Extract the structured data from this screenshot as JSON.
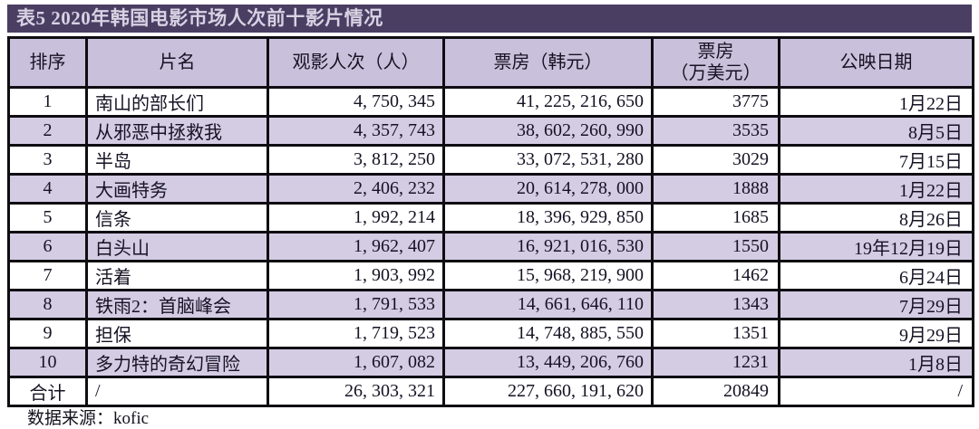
{
  "title": "表5 2020年韩国电影市场人次前十影片情况",
  "table": {
    "columns": [
      {
        "label": "排序"
      },
      {
        "label": "片名"
      },
      {
        "label": "观影人次（人）"
      },
      {
        "label": "票房（韩元）"
      },
      {
        "label": "票房",
        "label2": "（万美元）"
      },
      {
        "label": "公映日期"
      }
    ],
    "rows": [
      [
        "1",
        "南山的部长们",
        "4, 750, 345",
        "41, 225, 216, 650",
        "3775",
        "1月22日"
      ],
      [
        "2",
        "从邪恶中拯救我",
        "4, 357, 743",
        "38, 602, 260, 990",
        "3535",
        "8月5日"
      ],
      [
        "3",
        "半岛",
        "3, 812, 250",
        "33, 072, 531, 280",
        "3029",
        "7月15日"
      ],
      [
        "4",
        "大画特务",
        "2, 406, 232",
        "20, 614, 278, 000",
        "1888",
        "1月22日"
      ],
      [
        "5",
        "信条",
        "1, 992, 214",
        "18, 396, 929, 850",
        "1685",
        "8月26日"
      ],
      [
        "6",
        "白头山",
        "1, 962, 407",
        "16, 921, 016, 530",
        "1550",
        "19年12月19日"
      ],
      [
        "7",
        "活着",
        "1, 903, 992",
        "15, 968, 219, 900",
        "1462",
        "6月24日"
      ],
      [
        "8",
        "铁雨2：首脑峰会",
        "1, 791, 533",
        "14, 661, 646, 110",
        "1343",
        "7月29日"
      ],
      [
        "9",
        "担保",
        "1, 719, 523",
        "14, 748, 885, 550",
        "1351",
        "9月29日"
      ],
      [
        "10",
        "多力特的奇幻冒险",
        "1, 607, 082",
        "13, 449, 206, 760",
        "1231",
        "1月8日"
      ],
      [
        "合计",
        "/",
        "26, 303, 321",
        "227, 660, 191, 620",
        "20849",
        "/"
      ]
    ]
  },
  "footer": {
    "source": "数据来源：kofic"
  },
  "colors": {
    "title_bar_bg": "#4a3e63",
    "title_bar_fg": "#d8d2e3",
    "header_bg": "#c9c1db",
    "stripe_bg": "#d3cce3",
    "border": "#0f0d12"
  }
}
